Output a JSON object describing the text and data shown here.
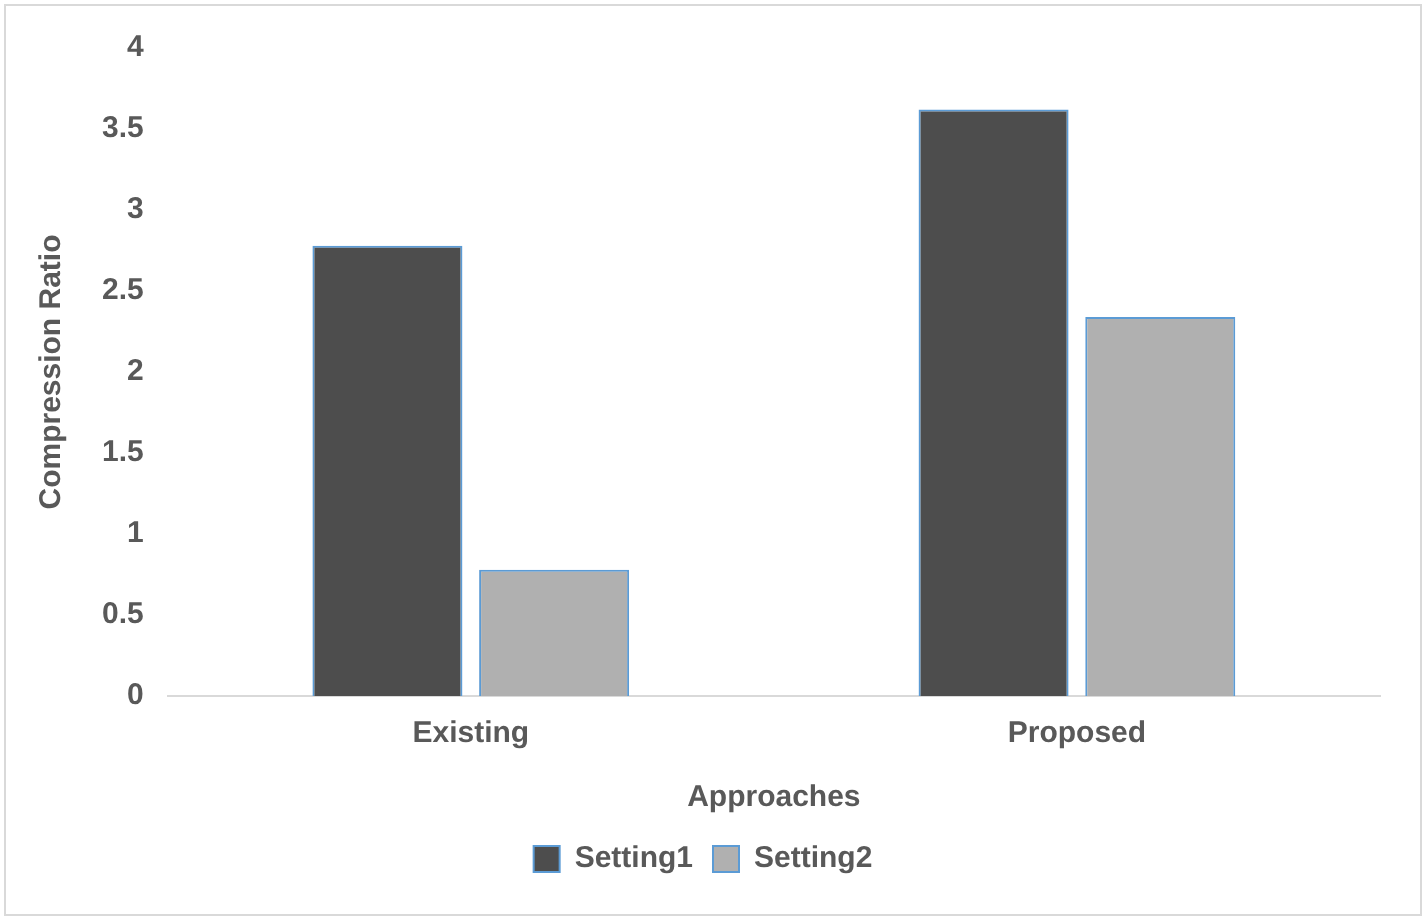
{
  "chart_data": {
    "type": "bar",
    "xlabel": "Approaches",
    "ylabel": "Compression Ratio",
    "categories": [
      "Existing",
      "Proposed"
    ],
    "series": [
      {
        "name": "Setting1",
        "color": "#4d4d4d",
        "values": [
          2.78,
          3.62
        ]
      },
      {
        "name": "Setting2",
        "color": "#b0b0b0",
        "values": [
          0.78,
          2.34
        ]
      }
    ],
    "ylim": [
      0,
      4
    ],
    "yticks": [
      0,
      0.5,
      1,
      1.5,
      2,
      2.5,
      3,
      3.5,
      4
    ],
    "grid": false,
    "legend": "bottom"
  }
}
